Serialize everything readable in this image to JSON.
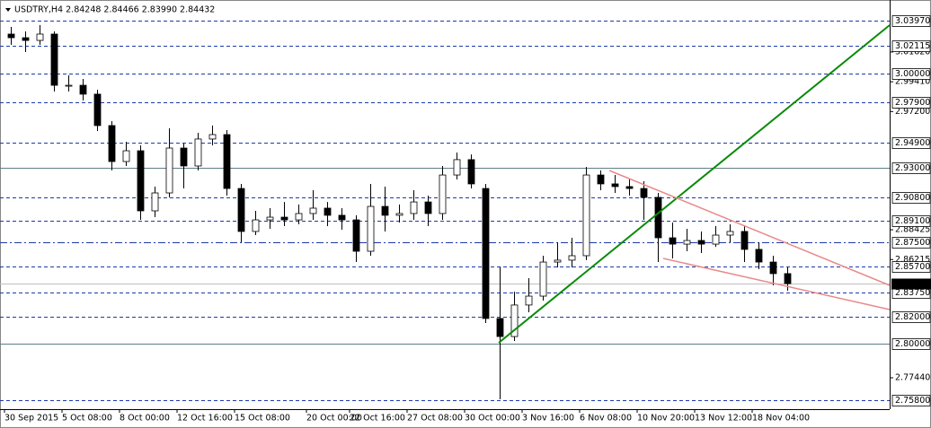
{
  "chart_data": {
    "type": "candlestick",
    "title": "USDTRY,H4  2.84248 2.84466 2.83990 2.84432",
    "categories": [
      "30 Sep 2015",
      null,
      null,
      null,
      "5 Oct 08:00",
      null,
      null,
      null,
      "8 Oct 00:00",
      null,
      null,
      null,
      "12 Oct 16:00",
      null,
      null,
      null,
      "15 Oct 08:00",
      null,
      null,
      null,
      null,
      "20 Oct 00:00",
      null,
      null,
      "22 Oct 16:00",
      null,
      null,
      null,
      "27 Oct 08:00",
      null,
      null,
      null,
      "30 Oct 00:00",
      null,
      null,
      null,
      "3 Nov 16:00",
      null,
      null,
      null,
      "6 Nov 08:00",
      null,
      null,
      null,
      "10 Nov 20:00",
      null,
      null,
      null,
      "13 Nov 12:00",
      null,
      null,
      null,
      "18 Nov 04:00",
      null,
      null
    ],
    "series": [
      {
        "open": [
          3.0295,
          3.0268,
          3.0248,
          3.0295,
          2.9915,
          2.9915,
          2.9849,
          2.9616,
          2.9349,
          2.9429,
          2.8983,
          2.9116,
          2.9449,
          2.9316,
          2.9516,
          2.9549,
          2.9149,
          2.883,
          2.8916,
          2.8936,
          2.8916,
          2.8963,
          2.9003,
          2.895,
          2.8916,
          2.8683,
          2.9016,
          2.895,
          2.8963,
          2.9049,
          2.8963,
          2.9249,
          2.9363,
          2.9149,
          2.8184,
          2.805,
          2.8284,
          2.835,
          2.8603,
          2.8617,
          2.865,
          2.9249,
          2.9183,
          2.9163,
          2.9149,
          2.9083,
          2.8783,
          2.8736,
          2.8763,
          2.8736,
          2.8803,
          2.883,
          2.8697,
          2.8603,
          2.8517
        ],
        "high": [
          3.0348,
          3.0315,
          3.0362,
          3.0315,
          2.9989,
          2.9962,
          2.9882,
          2.9649,
          2.9496,
          2.9469,
          2.9163,
          2.9596,
          2.9482,
          2.9562,
          2.9616,
          2.9582,
          2.9183,
          2.8983,
          2.9003,
          2.9049,
          2.903,
          2.9136,
          2.9049,
          2.9003,
          2.895,
          2.9183,
          2.9163,
          2.903,
          2.9136,
          2.9096,
          2.9316,
          2.9416,
          2.9402,
          2.9183,
          2.857,
          2.8383,
          2.8483,
          2.865,
          2.875,
          2.8783,
          2.9309,
          2.9283,
          2.9249,
          2.9216,
          2.9203,
          2.9116,
          2.8896,
          2.885,
          2.883,
          2.887,
          2.8883,
          2.887,
          2.875,
          2.865,
          2.8563
        ],
        "low": [
          3.0215,
          3.0162,
          3.0215,
          2.9869,
          2.9869,
          2.9802,
          2.9576,
          2.9283,
          2.9316,
          2.8916,
          2.8936,
          2.9083,
          2.9149,
          2.9283,
          2.9469,
          2.9096,
          2.875,
          2.8803,
          2.885,
          2.887,
          2.8883,
          2.8916,
          2.887,
          2.8843,
          2.8603,
          2.865,
          2.883,
          2.8896,
          2.8916,
          2.887,
          2.8916,
          2.9216,
          2.9149,
          2.815,
          2.7584,
          2.8017,
          2.823,
          2.8317,
          2.8563,
          2.8563,
          2.8617,
          2.9136,
          2.9116,
          2.9096,
          2.8916,
          2.8603,
          2.863,
          2.8683,
          2.867,
          2.8716,
          2.875,
          2.8603,
          2.855,
          2.843,
          2.839
        ],
        "close": [
          3.0268,
          3.0248,
          3.0295,
          2.9915,
          2.9915,
          2.9849,
          2.9616,
          2.9349,
          2.9429,
          2.8983,
          2.9116,
          2.9449,
          2.9316,
          2.9516,
          2.9549,
          2.9149,
          2.883,
          2.8916,
          2.8936,
          2.8916,
          2.8963,
          2.9003,
          2.895,
          2.8916,
          2.8683,
          2.9016,
          2.895,
          2.8963,
          2.9049,
          2.8963,
          2.9249,
          2.9363,
          2.9183,
          2.8184,
          2.805,
          2.8284,
          2.835,
          2.8603,
          2.8617,
          2.865,
          2.9249,
          2.9183,
          2.9163,
          2.9149,
          2.9083,
          2.8783,
          2.8736,
          2.8763,
          2.8736,
          2.8803,
          2.883,
          2.8697,
          2.8603,
          2.8517,
          2.8443
        ]
      }
    ],
    "ylim": [
      2.7511,
      3.0528
    ],
    "yticks": [
      {
        "value": 3.0162,
        "label": "3.01620"
      },
      {
        "value": 2.9941,
        "label": "2.99410"
      },
      {
        "value": 2.972,
        "label": "2.97200"
      },
      {
        "value": 2.88425,
        "label": "2.88425"
      },
      {
        "value": 2.86215,
        "label": "2.86215"
      },
      {
        "value": 2.7744,
        "label": "2.77440"
      }
    ],
    "levels": [
      {
        "value": 3.0397,
        "label": "3.03970",
        "style": "dashed"
      },
      {
        "value": 3.02115,
        "label": "3.02115",
        "style": "dashed"
      },
      {
        "value": 3.0,
        "label": "3.00000",
        "style": "dashed"
      },
      {
        "value": 2.979,
        "label": "2.97900",
        "style": "dashed"
      },
      {
        "value": 2.949,
        "label": "2.94900",
        "style": "dashed"
      },
      {
        "value": 2.93,
        "label": "2.93000",
        "style": "solid"
      },
      {
        "value": 2.908,
        "label": "2.90800",
        "style": "dashed"
      },
      {
        "value": 2.891,
        "label": "2.89100",
        "style": "dashed"
      },
      {
        "value": 2.875,
        "label": "2.87500",
        "style": "dashdot"
      },
      {
        "value": 2.857,
        "label": "2.85700",
        "style": "dashed"
      },
      {
        "value": 2.8375,
        "label": "2.83750",
        "style": "dashed"
      },
      {
        "value": 2.82,
        "label": "2.82000",
        "style": "dashed"
      },
      {
        "value": 2.8,
        "label": "2.80000",
        "style": "solid"
      },
      {
        "value": 2.758,
        "label": "2.75800",
        "style": "dashed"
      }
    ],
    "current_price": {
      "value": 2.84432,
      "label": "2.84432"
    },
    "level_color": "#1c3aa9",
    "solid_level_color": "#5f7f86",
    "up_color": "#ffffff",
    "down_color": "#000000"
  }
}
